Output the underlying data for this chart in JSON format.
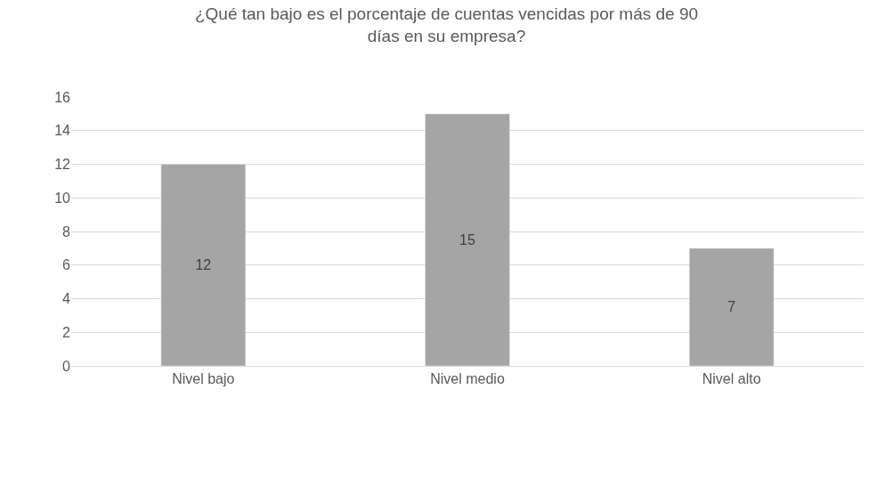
{
  "chart_data": {
    "type": "bar",
    "title": "¿Qué tan bajo es el porcentaje de cuentas vencidas por más de 90\ndías en su empresa?",
    "categories": [
      "Nivel bajo",
      "Nivel medio",
      "Nivel alto"
    ],
    "values": [
      12,
      15,
      7
    ],
    "color": "#a5a5a5",
    "ylim": [
      0,
      16
    ],
    "yticks": [
      0,
      2,
      4,
      6,
      8,
      10,
      12,
      14,
      16
    ],
    "grid": "y",
    "data_labels": true,
    "legend": false
  }
}
